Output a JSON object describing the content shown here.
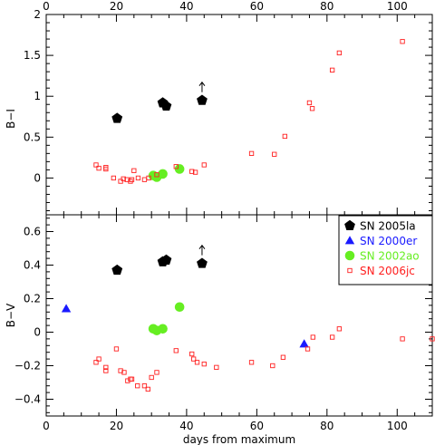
{
  "chart_data": {
    "type": "scatter",
    "xlabel": "days from maximum",
    "xlim": [
      0,
      110
    ],
    "x_ticks": [
      0,
      20,
      40,
      60,
      80,
      100
    ],
    "panels": [
      {
        "ylabel": "B−I",
        "ylim": [
          -0.45,
          2.0
        ],
        "y_ticks": [
          0,
          0.5,
          1,
          1.5,
          2
        ],
        "y_tick_labels": [
          "0",
          "0.5",
          "1",
          "1.5",
          "2"
        ]
      },
      {
        "ylabel": "B−V",
        "ylim": [
          -0.5,
          0.7
        ],
        "y_ticks": [
          -0.4,
          -0.2,
          0,
          0.2,
          0.4,
          0.6
        ],
        "y_tick_labels": [
          "−0.4",
          "−0.2",
          "0",
          "0.2",
          "0.4",
          "0.6"
        ]
      }
    ],
    "legend": {
      "placement": "right, middle",
      "entries": [
        {
          "label": "SN 2005la",
          "color": "#000000",
          "marker": "pentagon"
        },
        {
          "label": "SN 2000er",
          "color": "#1a1aff",
          "marker": "triangle"
        },
        {
          "label": "SN 2002ao",
          "color": "#66ee22",
          "marker": "circle"
        },
        {
          "label": "SN 2006jc",
          "color": "#ff2020",
          "marker": "open-square"
        }
      ]
    },
    "series": [
      {
        "name": "SN 2005la",
        "color": "#000000",
        "marker": "pentagon",
        "panel1": [
          [
            20.2,
            0.73
          ],
          [
            33.2,
            0.92
          ],
          [
            34.2,
            0.88
          ],
          [
            44.4,
            0.95
          ]
        ],
        "panel1_lower_limit_arrows": [
          [
            44.4,
            0.95
          ]
        ],
        "panel2": [
          [
            20.2,
            0.37
          ],
          [
            33.2,
            0.42
          ],
          [
            34.2,
            0.43
          ],
          [
            44.4,
            0.41
          ]
        ],
        "panel2_lower_limit_arrows": [
          [
            44.4,
            0.41
          ]
        ]
      },
      {
        "name": "SN 2000er",
        "color": "#1a1aff",
        "marker": "triangle",
        "panel1": [],
        "panel2": [
          [
            5.7,
            0.14
          ],
          [
            73.5,
            -0.07
          ]
        ]
      },
      {
        "name": "SN 2002ao",
        "color": "#66ee22",
        "marker": "circle",
        "panel1": [
          [
            30.5,
            0.03
          ],
          [
            31.5,
            0.01
          ],
          [
            33.2,
            0.05
          ],
          [
            38.0,
            0.11
          ]
        ],
        "panel2": [
          [
            30.5,
            0.02
          ],
          [
            31.5,
            0.01
          ],
          [
            33.2,
            0.02
          ],
          [
            38.0,
            0.15
          ]
        ]
      },
      {
        "name": "SN 2006jc",
        "color": "#ff2020",
        "marker": "open-square",
        "panel1": [
          [
            14.2,
            0.16
          ],
          [
            15.0,
            0.12
          ],
          [
            17.0,
            0.13
          ],
          [
            17.0,
            0.11
          ],
          [
            19.2,
            0.0
          ],
          [
            21.2,
            -0.04
          ],
          [
            22.0,
            -0.01
          ],
          [
            23.0,
            -0.02
          ],
          [
            24.0,
            -0.04
          ],
          [
            24.4,
            -0.02
          ],
          [
            25.0,
            0.09
          ],
          [
            26.2,
            0.0
          ],
          [
            28.0,
            -0.02
          ],
          [
            29.2,
            0.0
          ],
          [
            31.5,
            0.04
          ],
          [
            37.0,
            0.14
          ],
          [
            41.5,
            0.08
          ],
          [
            42.5,
            0.07
          ],
          [
            45.0,
            0.16
          ],
          [
            58.5,
            0.3
          ],
          [
            65.0,
            0.29
          ],
          [
            68.0,
            0.51
          ],
          [
            75.0,
            0.92
          ],
          [
            75.8,
            0.85
          ],
          [
            81.5,
            1.32
          ],
          [
            83.5,
            1.53
          ],
          [
            101.5,
            1.67
          ]
        ],
        "panel2": [
          [
            14.2,
            -0.18
          ],
          [
            15.0,
            -0.16
          ],
          [
            17.0,
            -0.21
          ],
          [
            17.0,
            -0.23
          ],
          [
            20.0,
            -0.1
          ],
          [
            21.2,
            -0.23
          ],
          [
            22.2,
            -0.24
          ],
          [
            23.2,
            -0.29
          ],
          [
            24.0,
            -0.28
          ],
          [
            24.4,
            -0.28
          ],
          [
            26.0,
            -0.32
          ],
          [
            28.0,
            -0.32
          ],
          [
            29.0,
            -0.34
          ],
          [
            30.0,
            -0.27
          ],
          [
            31.5,
            -0.24
          ],
          [
            37.0,
            -0.11
          ],
          [
            41.5,
            -0.13
          ],
          [
            42.0,
            -0.16
          ],
          [
            43.0,
            -0.18
          ],
          [
            45.0,
            -0.19
          ],
          [
            48.5,
            -0.21
          ],
          [
            58.5,
            -0.18
          ],
          [
            64.5,
            -0.2
          ],
          [
            67.5,
            -0.15
          ],
          [
            74.5,
            -0.1
          ],
          [
            76.0,
            -0.03
          ],
          [
            81.5,
            -0.03
          ],
          [
            83.5,
            0.02
          ],
          [
            101.5,
            -0.04
          ],
          [
            110.0,
            -0.04
          ]
        ]
      }
    ]
  }
}
